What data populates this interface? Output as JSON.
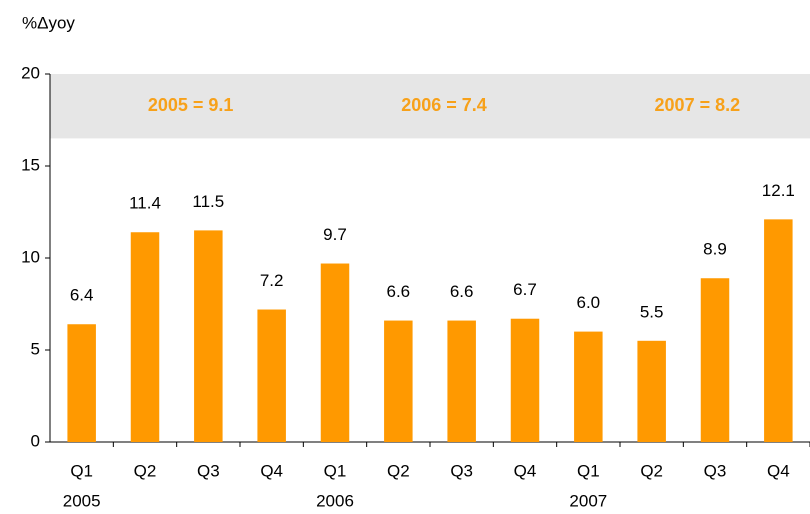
{
  "chart_data": {
    "type": "bar",
    "y_label": "%Δyoy",
    "categories": [
      "Q1",
      "Q2",
      "Q3",
      "Q4",
      "Q1",
      "Q2",
      "Q3",
      "Q4",
      "Q1",
      "Q2",
      "Q3",
      "Q4"
    ],
    "year_labels": [
      "2005",
      "2006",
      "2007"
    ],
    "values": [
      6.4,
      11.4,
      11.5,
      7.2,
      9.7,
      6.6,
      6.6,
      6.7,
      6.0,
      5.5,
      8.9,
      12.1
    ],
    "value_labels": [
      "6.4",
      "11.4",
      "11.5",
      "7.2",
      "9.7",
      "6.6",
      "6.6",
      "6.7",
      "6.0",
      "5.5",
      "8.9",
      "12.1"
    ],
    "color": "#ff9900",
    "annotations": [
      "2005 = 9.1",
      "2006 = 7.4",
      "2007 = 8.2"
    ],
    "highlight_band": [
      16.5,
      20
    ],
    "highlight_color": "#e6e6e6",
    "ylim": [
      0,
      20
    ],
    "yticks": [
      0,
      5,
      10,
      15,
      20
    ],
    "grid": false
  }
}
